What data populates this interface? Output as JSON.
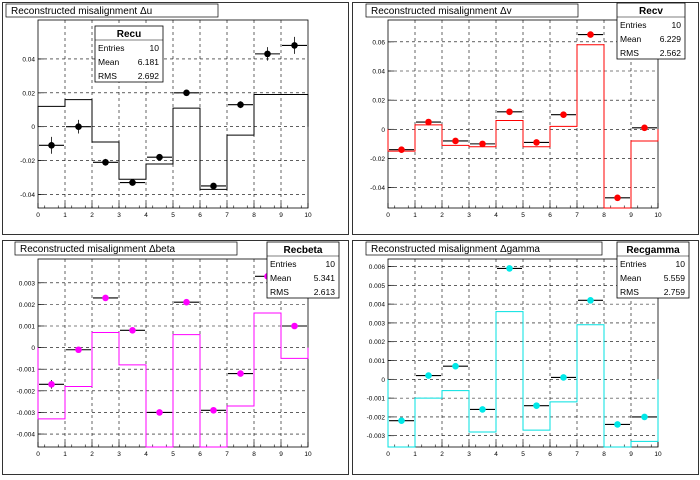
{
  "chart_data": [
    {
      "type": "histogram",
      "title": "Reconstructed misalignment Δu",
      "xlim": [
        0,
        10
      ],
      "ylim": [
        -0.048,
        0.063
      ],
      "xticks": [
        0,
        1,
        2,
        3,
        4,
        5,
        6,
        7,
        8,
        9,
        10
      ],
      "yticks": [
        -0.04,
        -0.02,
        0,
        0.02,
        0.04
      ],
      "ytick_labels": [
        "-0.04",
        "-0.02",
        "0",
        "0.02",
        "0.04"
      ],
      "grid": true,
      "hist_color": "#000000",
      "point_color": "#000000",
      "hist": [
        0.012,
        0.016,
        -0.009,
        -0.031,
        -0.022,
        0.011,
        -0.037,
        -0.005,
        0.019,
        0.019
      ],
      "points": [
        -0.011,
        0.0,
        -0.021,
        -0.033,
        -0.018,
        0.02,
        -0.035,
        0.013,
        0.043,
        0.048
      ],
      "errors": [
        0.005,
        0.004,
        0.002,
        0.001,
        0.001,
        0.001,
        0.001,
        0.002,
        0.004,
        0.005
      ],
      "ref": [
        -0.011,
        0.0,
        -0.021,
        -0.033,
        -0.018,
        0.02,
        -0.035,
        0.013,
        0.043,
        0.048
      ],
      "stats": {
        "name": "Recu",
        "rows": [
          [
            "Entries",
            "10"
          ],
          [
            "Mean",
            "6.181"
          ],
          [
            "RMS",
            "2.692"
          ]
        ],
        "placement": "top-center"
      }
    },
    {
      "type": "histogram",
      "title": "Reconstructed misalignment Δv",
      "xlim": [
        0,
        10
      ],
      "ylim": [
        -0.054,
        0.075
      ],
      "xticks": [
        0,
        1,
        2,
        3,
        4,
        5,
        6,
        7,
        8,
        9,
        10
      ],
      "yticks": [
        -0.04,
        -0.02,
        0,
        0.02,
        0.04,
        0.06
      ],
      "ytick_labels": [
        "-0.04",
        "-0.02",
        "0",
        "0.02",
        "0.04",
        "0.06"
      ],
      "grid": true,
      "hist_color": "#ff0000",
      "point_color": "#ff0000",
      "hist": [
        -0.015,
        0.003,
        -0.011,
        -0.012,
        0.006,
        -0.012,
        0.002,
        0.058,
        -0.055,
        -0.008
      ],
      "points": [
        -0.014,
        0.005,
        -0.008,
        -0.01,
        0.012,
        -0.009,
        0.01,
        0.065,
        -0.047,
        0.001
      ],
      "errors": [
        0.002,
        0.002,
        0.001,
        0.001,
        0.001,
        0.001,
        0.001,
        0.002,
        0.002,
        0.001
      ],
      "ref": [
        -0.014,
        0.005,
        -0.008,
        -0.01,
        0.012,
        -0.009,
        0.01,
        0.065,
        -0.047,
        0.001
      ],
      "stats": {
        "name": "Recv",
        "rows": [
          [
            "Entries",
            "10"
          ],
          [
            "Mean",
            "6.229"
          ],
          [
            "RMS",
            "2.562"
          ]
        ],
        "placement": "top-right"
      }
    },
    {
      "type": "histogram",
      "title": "Reconstructed misalignment Δbeta",
      "xlim": [
        0,
        10
      ],
      "ylim": [
        -0.0046,
        0.0041
      ],
      "xticks": [
        0,
        1,
        2,
        3,
        4,
        5,
        6,
        7,
        8,
        9,
        10
      ],
      "yticks": [
        -0.004,
        -0.003,
        -0.002,
        -0.001,
        0,
        0.001,
        0.002,
        0.003
      ],
      "ytick_labels": [
        "-0.004",
        "-0.003",
        "-0.002",
        "-0.001",
        "0",
        "0.001",
        "0.002",
        "0.003"
      ],
      "grid": true,
      "hist_color": "#ff00ff",
      "point_color": "#ff00ff",
      "hist": [
        -0.0033,
        -0.0018,
        0.0007,
        -0.0008,
        -0.0046,
        0.0006,
        -0.0046,
        -0.0027,
        0.0016,
        -0.0005
      ],
      "points": [
        -0.0017,
        -0.0001,
        0.0023,
        0.0008,
        -0.003,
        0.0021,
        -0.0029,
        -0.0012,
        0.0033,
        0.001
      ],
      "errors": [
        0.0002,
        0.0001,
        0.0001,
        0.0001,
        0.0001,
        0.0001,
        0.0001,
        0.0001,
        0.0001,
        0.0001
      ],
      "ref": [
        -0.0017,
        -0.0001,
        0.0023,
        0.0008,
        -0.003,
        0.0021,
        -0.0029,
        -0.0012,
        0.0033,
        0.001
      ],
      "stats": {
        "name": "Recbeta",
        "rows": [
          [
            "Entries",
            "10"
          ],
          [
            "Mean",
            "5.341"
          ],
          [
            "RMS",
            "2.613"
          ]
        ],
        "placement": "top-right"
      }
    },
    {
      "type": "histogram",
      "title": "Reconstructed misalignment Δgamma",
      "xlim": [
        0,
        10
      ],
      "ylim": [
        -0.0036,
        0.0064
      ],
      "xticks": [
        0,
        1,
        2,
        3,
        4,
        5,
        6,
        7,
        8,
        9,
        10
      ],
      "yticks": [
        -0.003,
        -0.002,
        -0.001,
        0,
        0.001,
        0.002,
        0.003,
        0.004,
        0.005,
        0.006
      ],
      "ytick_labels": [
        "-0.003",
        "-0.002",
        "-0.001",
        "0",
        "0.001",
        "0.002",
        "0.003",
        "0.004",
        "0.005",
        "0.006"
      ],
      "grid": true,
      "hist_color": "#00e0e0",
      "point_color": "#00e8e8",
      "hist": [
        -0.0036,
        -0.001,
        -0.0006,
        -0.0028,
        0.0036,
        -0.0027,
        -0.0012,
        0.0029,
        -0.0036,
        -0.0033
      ],
      "points": [
        -0.0022,
        0.0002,
        0.0007,
        -0.0016,
        0.0059,
        -0.0014,
        0.0001,
        0.0042,
        -0.0024,
        -0.002
      ],
      "errors": [
        0.0001,
        0.0001,
        0.0001,
        0.0001,
        0.0001,
        0.0001,
        0.0001,
        0.0001,
        0.0001,
        0.0001
      ],
      "ref": [
        -0.0022,
        0.0002,
        0.0007,
        -0.0016,
        0.0059,
        -0.0014,
        0.0001,
        0.0042,
        -0.0024,
        -0.002
      ],
      "stats": {
        "name": "Recgamma",
        "rows": [
          [
            "Entries",
            "10"
          ],
          [
            "Mean",
            "5.559"
          ],
          [
            "RMS",
            "2.759"
          ]
        ],
        "placement": "top-right"
      }
    }
  ]
}
